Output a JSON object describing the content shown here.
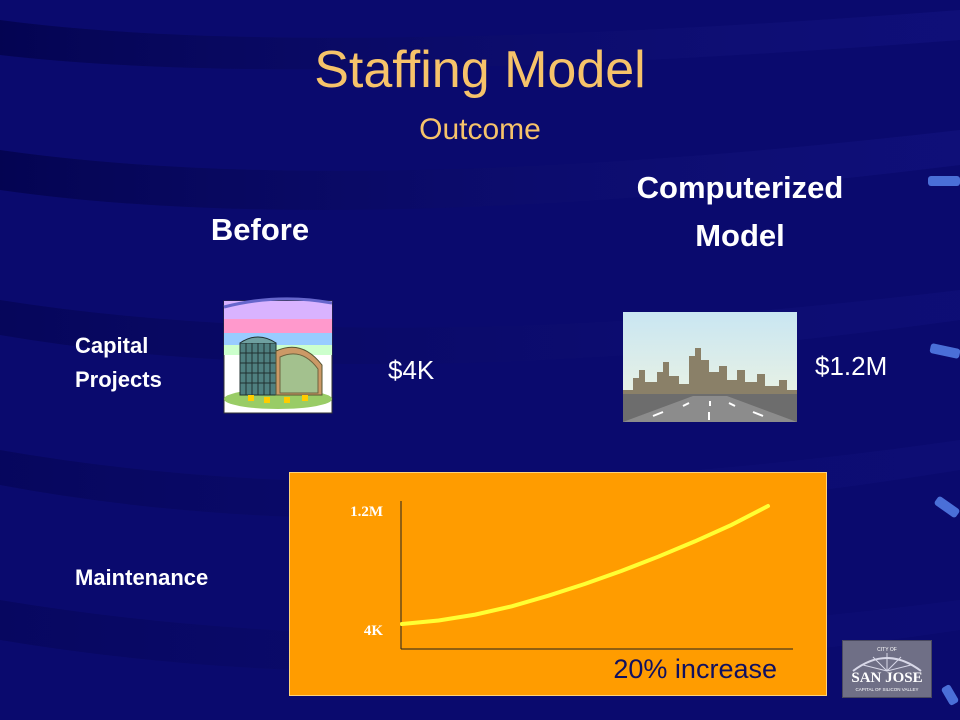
{
  "slide": {
    "title": "Staffing Model",
    "subtitle": "Outcome",
    "columns": {
      "before": "Before",
      "after_line1": "Computerized",
      "after_line2": "Model"
    },
    "rows": {
      "capital_line1": "Capital",
      "capital_line2": "Projects",
      "maintenance": "Maintenance"
    },
    "values": {
      "capital_before": "$4K",
      "capital_after": "$1.2M"
    },
    "colors": {
      "background": "#0a0a6e",
      "title": "#f6c36a",
      "panel": "#ff9c00",
      "curve": "#ffff33"
    },
    "logo": {
      "line_top": "CITY OF",
      "name": "SAN JOSE",
      "tagline": "CAPITAL OF SILICON VALLEY"
    }
  },
  "chart_data": {
    "type": "line",
    "yticks": [
      "1.2M",
      "4K"
    ],
    "footer": "20% increase",
    "series": [
      {
        "x": [
          0,
          0.1,
          0.2,
          0.3,
          0.4,
          0.5,
          0.6,
          0.7,
          0.8,
          0.9,
          1.0
        ],
        "y": [
          0,
          0.03,
          0.08,
          0.15,
          0.24,
          0.34,
          0.45,
          0.57,
          0.7,
          0.84,
          1.0
        ]
      }
    ]
  }
}
